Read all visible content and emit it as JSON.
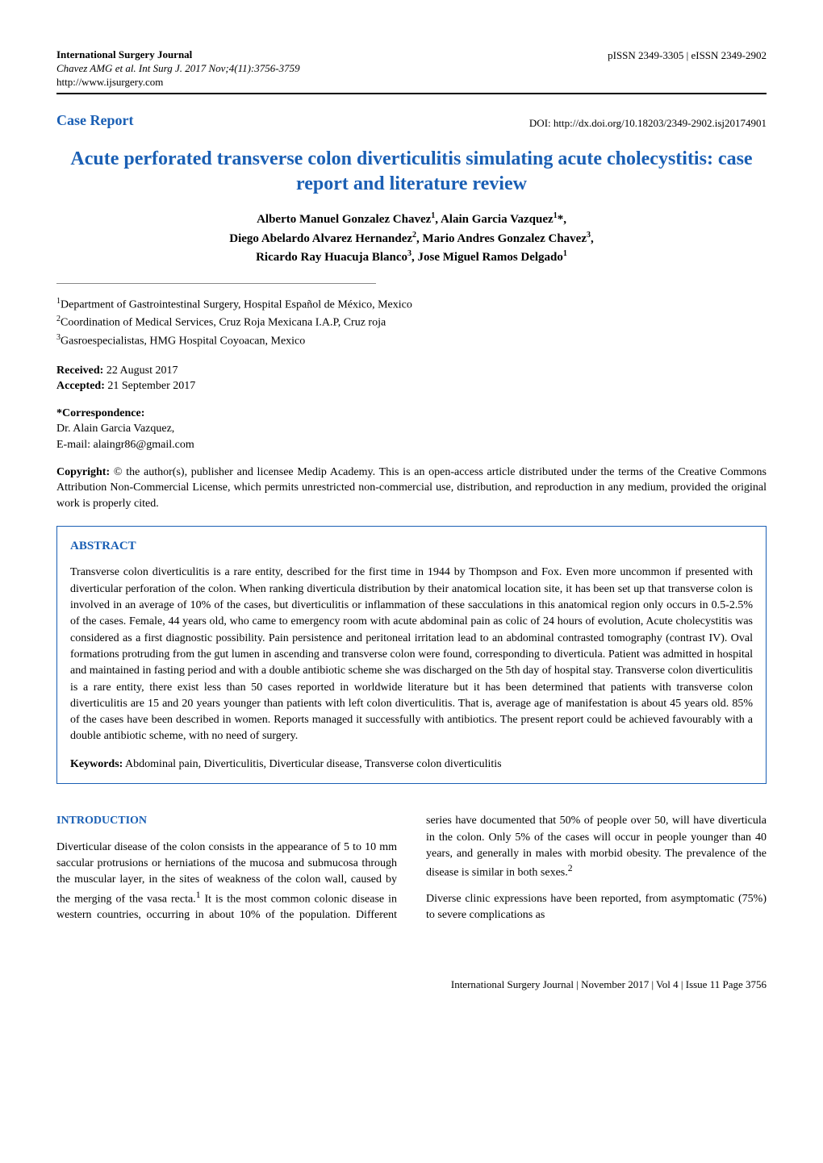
{
  "header": {
    "journal_name": "International Surgery Journal",
    "citation": "Chavez AMG et al. Int Surg J. 2017 Nov;4(11):3756-3759",
    "website": "http://www.ijsurgery.com",
    "issn": "pISSN 2349-3305 | eISSN 2349-2902"
  },
  "article_type": "Case Report",
  "doi": "DOI: http://dx.doi.org/10.18203/2349-2902.isj20174901",
  "title": "Acute perforated transverse colon diverticulitis simulating acute cholecystitis: case report and literature review",
  "authors_line1": "Alberto Manuel Gonzalez Chavez",
  "authors_sup1": "1",
  "authors_line1b": ", Alain Garcia Vazquez",
  "authors_sup1b": "1",
  "authors_star": "*,",
  "authors_line2": "Diego Abelardo Alvarez Hernandez",
  "authors_sup2": "2",
  "authors_line2b": ", Mario Andres Gonzalez Chavez",
  "authors_sup2b": "3",
  "authors_comma2": ",",
  "authors_line3": "Ricardo Ray Huacuja Blanco",
  "authors_sup3": "3",
  "authors_line3b": ", Jose Miguel Ramos Delgado",
  "authors_sup3b": "1",
  "affiliations": {
    "a1_sup": "1",
    "a1": "Department of Gastrointestinal Surgery, Hospital Español de México, Mexico",
    "a2_sup": "2",
    "a2": "Coordination of Medical Services, Cruz Roja Mexicana I.A.P, Cruz roja",
    "a3_sup": "3",
    "a3": "Gasroespecialistas, HMG Hospital Coyoacan, Mexico"
  },
  "dates": {
    "received_label": "Received:",
    "received": " 22 August 2017",
    "accepted_label": "Accepted:",
    "accepted": " 21 September 2017"
  },
  "correspondence": {
    "label": "*Correspondence:",
    "name": "Dr. Alain Garcia Vazquez,",
    "email": "E-mail: alaingr86@gmail.com"
  },
  "copyright": {
    "label": "Copyright:",
    "text": " © the author(s), publisher and licensee Medip Academy. This is an open-access article distributed under the terms of the Creative Commons Attribution Non-Commercial License, which permits unrestricted non-commercial use, distribution, and reproduction in any medium, provided the original work is properly cited."
  },
  "abstract": {
    "heading": "ABSTRACT",
    "text": "Transverse colon diverticulitis is a rare entity, described for the first time in 1944 by Thompson and Fox. Even more uncommon if presented with diverticular perforation of the colon. When ranking diverticula distribution by their anatomical location site, it has been set up that transverse colon is involved in an average of 10% of the cases, but diverticulitis or inflammation of these sacculations in this anatomical region only occurs in 0.5-2.5% of the cases. Female, 44 years old, who came to emergency room with acute abdominal pain as colic of 24 hours of evolution, Acute cholecystitis was considered as a first diagnostic possibility. Pain persistence and peritoneal irritation lead to an abdominal contrasted tomography (contrast IV). Oval formations protruding from the gut lumen in ascending and transverse colon were found, corresponding to diverticula. Patient was admitted in hospital and maintained in fasting period and with a double antibiotic scheme she was discharged on the 5th day of hospital stay. Transverse colon diverticulitis is a rare entity, there exist less than 50 cases reported in worldwide literature but it has been determined that patients with transverse colon diverticulitis are 15 and 20 years younger than patients with left colon diverticulitis. That is, average age of manifestation is about 45 years old. 85% of the cases have been described in women. Reports managed it successfully with antibiotics. The present report could be achieved favourably with a double antibiotic scheme, with no need of surgery.",
    "keywords_label": "Keywords:",
    "keywords": " Abdominal pain, Diverticulitis, Diverticular disease, Transverse colon diverticulitis"
  },
  "introduction": {
    "heading": "INTRODUCTION",
    "para1_a": "Diverticular disease of the colon consists in the appearance of 5 to 10 mm saccular protrusions or herniations of the mucosa and submucosa through the muscular layer, in the sites of weakness of the colon wall, caused by the merging of the vasa recta.",
    "para1_sup": "1",
    "para1_b": " It is the most common colonic disease in western countries, occurring in about 10% of the population. Different series have documented that 50% of people over 50, will have diverticula in the colon. Only 5% of the cases will occur in people younger than 40 years, and generally in males with morbid obesity. The prevalence of the disease is similar in both sexes.",
    "para1_sup2": "2",
    "para2": "Diverse clinic expressions have been reported, from asymptomatic (75%) to severe complications as"
  },
  "footer": "International Surgery Journal | November 2017 | Vol 4 | Issue 11    Page 3756",
  "colors": {
    "accent": "#1a5fb4",
    "text": "#000000",
    "background": "#ffffff",
    "divider": "#888888"
  }
}
